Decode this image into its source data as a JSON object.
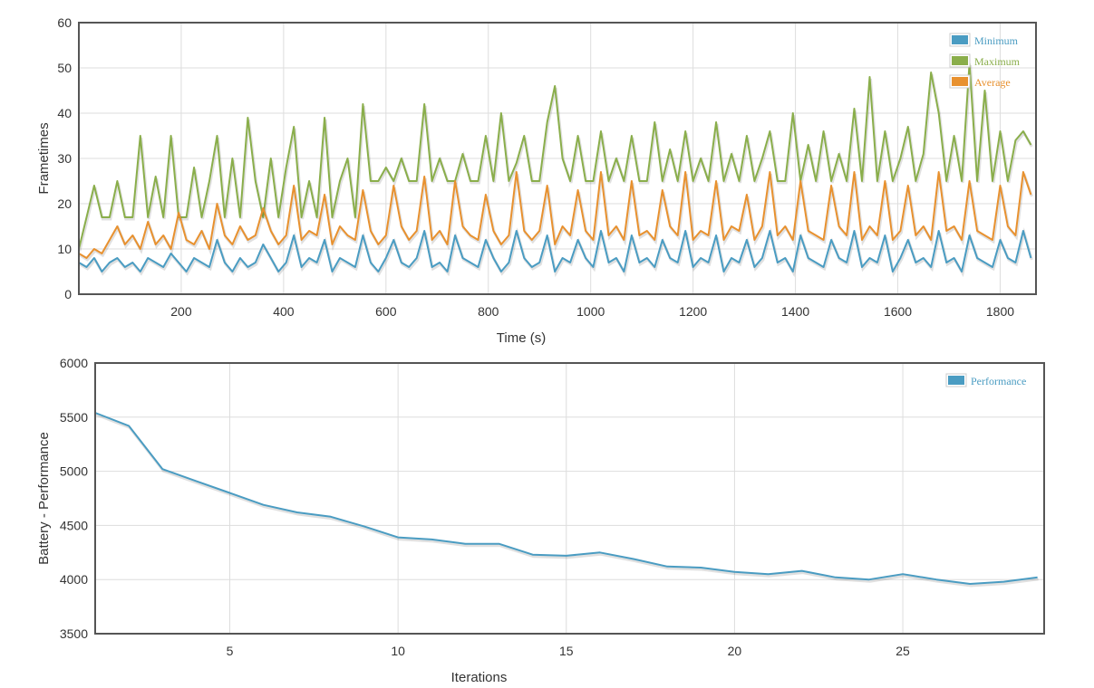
{
  "chart_data": [
    {
      "type": "line",
      "xlabel": "Time (s)",
      "ylabel": "Frametimes",
      "xlim": [
        0,
        1870
      ],
      "ylim": [
        0,
        60
      ],
      "xticks": [
        200,
        400,
        600,
        800,
        1000,
        1200,
        1400,
        1600,
        1800
      ],
      "yticks": [
        0,
        10,
        20,
        30,
        40,
        50,
        60
      ],
      "grid": true,
      "legend_position": "top-right",
      "x_start": 0,
      "x_step": 15,
      "series": [
        {
          "name": "Minimum",
          "color": "#4a9cc2",
          "values": [
            7,
            6,
            8,
            5,
            7,
            8,
            6,
            7,
            5,
            8,
            7,
            6,
            9,
            7,
            5,
            8,
            7,
            6,
            12,
            7,
            5,
            8,
            6,
            7,
            11,
            8,
            5,
            7,
            13,
            6,
            8,
            7,
            12,
            5,
            8,
            7,
            6,
            13,
            7,
            5,
            8,
            12,
            7,
            6,
            8,
            14,
            6,
            7,
            5,
            13,
            8,
            7,
            6,
            12,
            8,
            5,
            7,
            14,
            8,
            6,
            7,
            13,
            5,
            8,
            7,
            12,
            8,
            6,
            14,
            7,
            8,
            5,
            13,
            7,
            8,
            6,
            12,
            8,
            7,
            14,
            6,
            8,
            7,
            13,
            5,
            8,
            7,
            12,
            6,
            8,
            14,
            7,
            8,
            5,
            13,
            8,
            7,
            6,
            12,
            8,
            7,
            14,
            6,
            8,
            7,
            13,
            5,
            8,
            12,
            7,
            8,
            6,
            14,
            7,
            8,
            5,
            13,
            8,
            7,
            6,
            12,
            8,
            7,
            14,
            8
          ]
        },
        {
          "name": "Maximum",
          "color": "#8aae4b",
          "values": [
            10,
            17,
            24,
            17,
            17,
            25,
            17,
            17,
            35,
            17,
            26,
            17,
            35,
            17,
            17,
            28,
            17,
            25,
            35,
            17,
            30,
            17,
            39,
            25,
            17,
            30,
            17,
            28,
            37,
            17,
            25,
            17,
            39,
            17,
            25,
            30,
            17,
            42,
            25,
            25,
            28,
            25,
            30,
            25,
            25,
            42,
            25,
            30,
            25,
            25,
            31,
            25,
            25,
            35,
            25,
            40,
            25,
            29,
            35,
            25,
            25,
            38,
            46,
            30,
            25,
            35,
            25,
            25,
            36,
            25,
            30,
            25,
            35,
            25,
            25,
            38,
            25,
            32,
            25,
            36,
            25,
            30,
            25,
            38,
            25,
            31,
            25,
            35,
            25,
            30,
            36,
            25,
            25,
            40,
            25,
            33,
            25,
            36,
            25,
            31,
            25,
            41,
            25,
            48,
            25,
            36,
            25,
            30,
            37,
            25,
            31,
            49,
            40,
            25,
            35,
            25,
            51,
            25,
            45,
            25,
            36,
            25,
            34,
            36,
            33
          ]
        },
        {
          "name": "Average",
          "color": "#e8912f",
          "values": [
            9,
            8,
            10,
            9,
            12,
            15,
            11,
            13,
            10,
            16,
            11,
            13,
            10,
            18,
            12,
            11,
            14,
            10,
            20,
            13,
            11,
            15,
            12,
            13,
            19,
            14,
            11,
            13,
            24,
            12,
            14,
            13,
            22,
            11,
            15,
            13,
            12,
            23,
            14,
            11,
            13,
            24,
            15,
            12,
            14,
            26,
            12,
            14,
            11,
            25,
            15,
            13,
            12,
            22,
            14,
            11,
            13,
            27,
            14,
            12,
            14,
            24,
            11,
            15,
            13,
            23,
            14,
            12,
            27,
            13,
            15,
            12,
            25,
            13,
            14,
            12,
            23,
            15,
            13,
            27,
            12,
            14,
            13,
            25,
            12,
            15,
            14,
            22,
            12,
            15,
            27,
            13,
            15,
            12,
            25,
            14,
            13,
            12,
            24,
            15,
            13,
            27,
            12,
            15,
            13,
            25,
            12,
            14,
            24,
            13,
            15,
            12,
            27,
            14,
            15,
            12,
            25,
            14,
            13,
            12,
            24,
            15,
            13,
            27,
            22
          ]
        }
      ]
    },
    {
      "type": "line",
      "xlabel": "Iterations",
      "ylabel": "Battery - Performance",
      "xlim": [
        1,
        29.2
      ],
      "ylim": [
        3500,
        6000
      ],
      "xticks": [
        5,
        10,
        15,
        20,
        25
      ],
      "yticks": [
        3500,
        4000,
        4500,
        5000,
        5500,
        6000
      ],
      "grid": true,
      "legend_position": "top-right",
      "series": [
        {
          "name": "Performance",
          "color": "#4a9cc2",
          "x": [
            1,
            2,
            3,
            4,
            5,
            6,
            7,
            8,
            9,
            10,
            11,
            12,
            13,
            14,
            15,
            16,
            17,
            18,
            19,
            20,
            21,
            22,
            23,
            24,
            25,
            26,
            27,
            28,
            29
          ],
          "values": [
            5540,
            5420,
            5020,
            4910,
            4800,
            4690,
            4620,
            4580,
            4490,
            4390,
            4370,
            4330,
            4330,
            4230,
            4220,
            4250,
            4190,
            4120,
            4110,
            4070,
            4050,
            4080,
            4020,
            4000,
            4050,
            4000,
            3960,
            3980,
            4020
          ]
        }
      ]
    }
  ]
}
